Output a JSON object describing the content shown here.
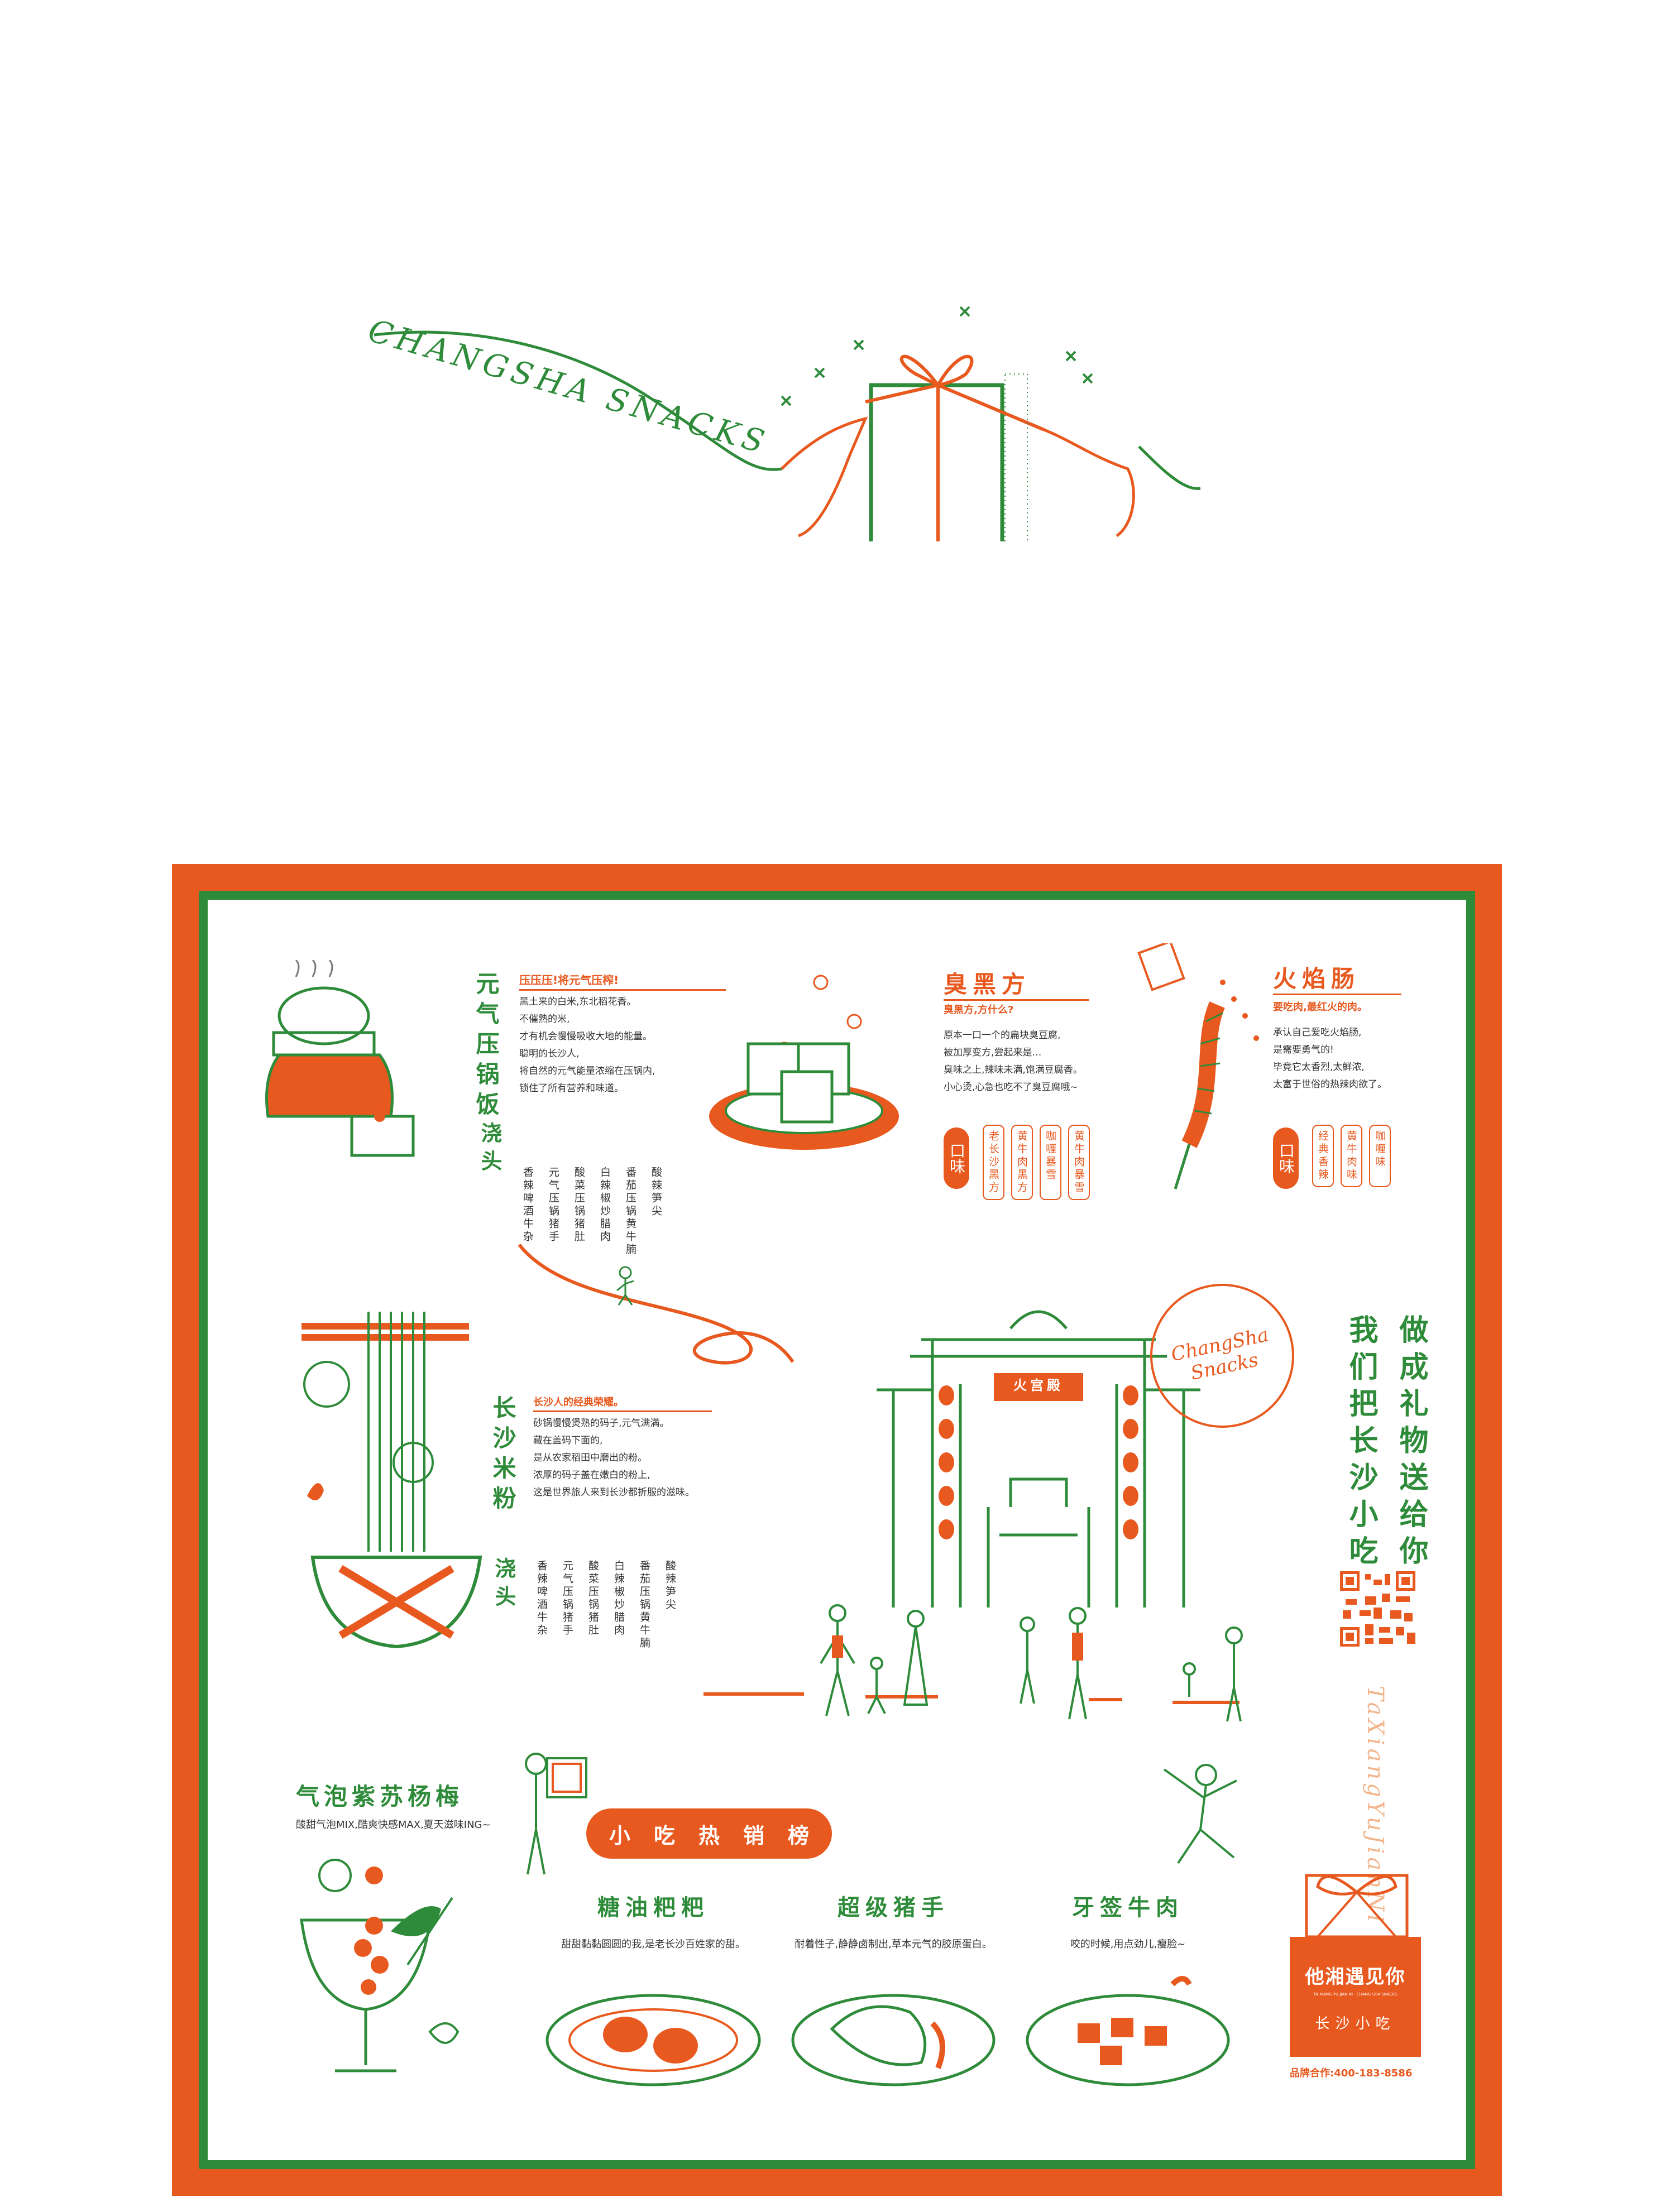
{
  "hero": {
    "script_text": "CHANGSHA SNACKS"
  },
  "sections": {
    "rice": {
      "title": "元气压锅饭",
      "subtitle": "压压压!将元气压榨!",
      "body": "黑土来的白米,东北稻花香。\n不催熟的米,\n才有机会慢慢吸收大地的能量。\n聪明的长沙人,\n将自然的元气能量浓缩在压锅内,\n锁住了所有营养和味道。",
      "topping_label": "浇头",
      "toppings": [
        "香辣啤酒牛杂",
        "元气压锅猪手",
        "酸菜压锅猪肚",
        "白辣椒炒腊肉",
        "番茄压锅黄牛腩",
        "酸辣笋尖"
      ]
    },
    "tofu": {
      "title": "臭黑方",
      "subtitle": "臭黑方,方什么?",
      "body": "原本一口一个的扁块臭豆腐,\n被加厚变方,尝起来是…\n臭味之上,辣味未满,饱满豆腐香。\n小心烫,心急也吃不了臭豆腐哦~",
      "flavor_label": "口味",
      "flavors": [
        "老长沙黑方",
        "黄牛肉黑方",
        "咖喱暴雪",
        "黄牛肉暴雪"
      ]
    },
    "sausage": {
      "title": "火焰肠",
      "subtitle": "要吃肉,最红火的肉。",
      "body": "承认自己爱吃火焰肠,\n是需要勇气的!\n毕竟它太香烈,太鲜浓,\n太富于世俗的热辣肉欲了。",
      "flavor_label": "口味",
      "flavors": [
        "经典香辣",
        "黄牛肉味",
        "咖喱味"
      ]
    },
    "noodle": {
      "title": "长沙米粉",
      "subtitle": "长沙人的经典荣耀。",
      "body": "砂锅慢慢煲熟的码子,元气满满。\n藏在盖码下面的,\n是从农家稻田中磨出的粉。\n浓厚的码子盖在嫩白的粉上,\n这是世界旅人来到长沙都折服的滋味。",
      "topping_label": "浇头",
      "toppings": [
        "香辣啤酒牛杂",
        "元气压锅猪手",
        "酸菜压锅猪肚",
        "白辣椒炒腊肉",
        "番茄压锅黄牛腩",
        "酸辣笋尖"
      ]
    },
    "drink": {
      "title": "气泡紫苏杨梅",
      "subtitle": "酸甜气泡MIX,酷爽快感MAX,夏天滋味ING~"
    }
  },
  "gate": {
    "plaque": "火宫殿",
    "stamp_text": "ChangSha Snacks"
  },
  "slogan": {
    "line1": "我们把长沙小吃",
    "line2": "做成礼物送给你",
    "vertical_script": "TaXiangYuJianNi"
  },
  "ranking": {
    "title_chars": [
      "小",
      "吃",
      "热",
      "销",
      "榜"
    ],
    "dishes": [
      {
        "name": "糖油粑粑",
        "desc": "甜甜黏黏圆圆的我,是老长沙百姓家的甜。"
      },
      {
        "name": "超级猪手",
        "desc": "耐着性子,静静卤制出,草本元气的胶原蛋白。"
      },
      {
        "name": "牙签牛肉",
        "desc": "咬的时候,用点劲儿,瘦脸~"
      }
    ]
  },
  "brand": {
    "name": "他湘遇见你",
    "tagline": "长沙小吃",
    "small_text": "TA XIANG YU JIAN NI · CHANG SHA SNACKS",
    "contact": "品牌合作:400-183-8586"
  },
  "colors": {
    "accent_orange": "#e8591f",
    "accent_green": "#2e8b3a"
  }
}
